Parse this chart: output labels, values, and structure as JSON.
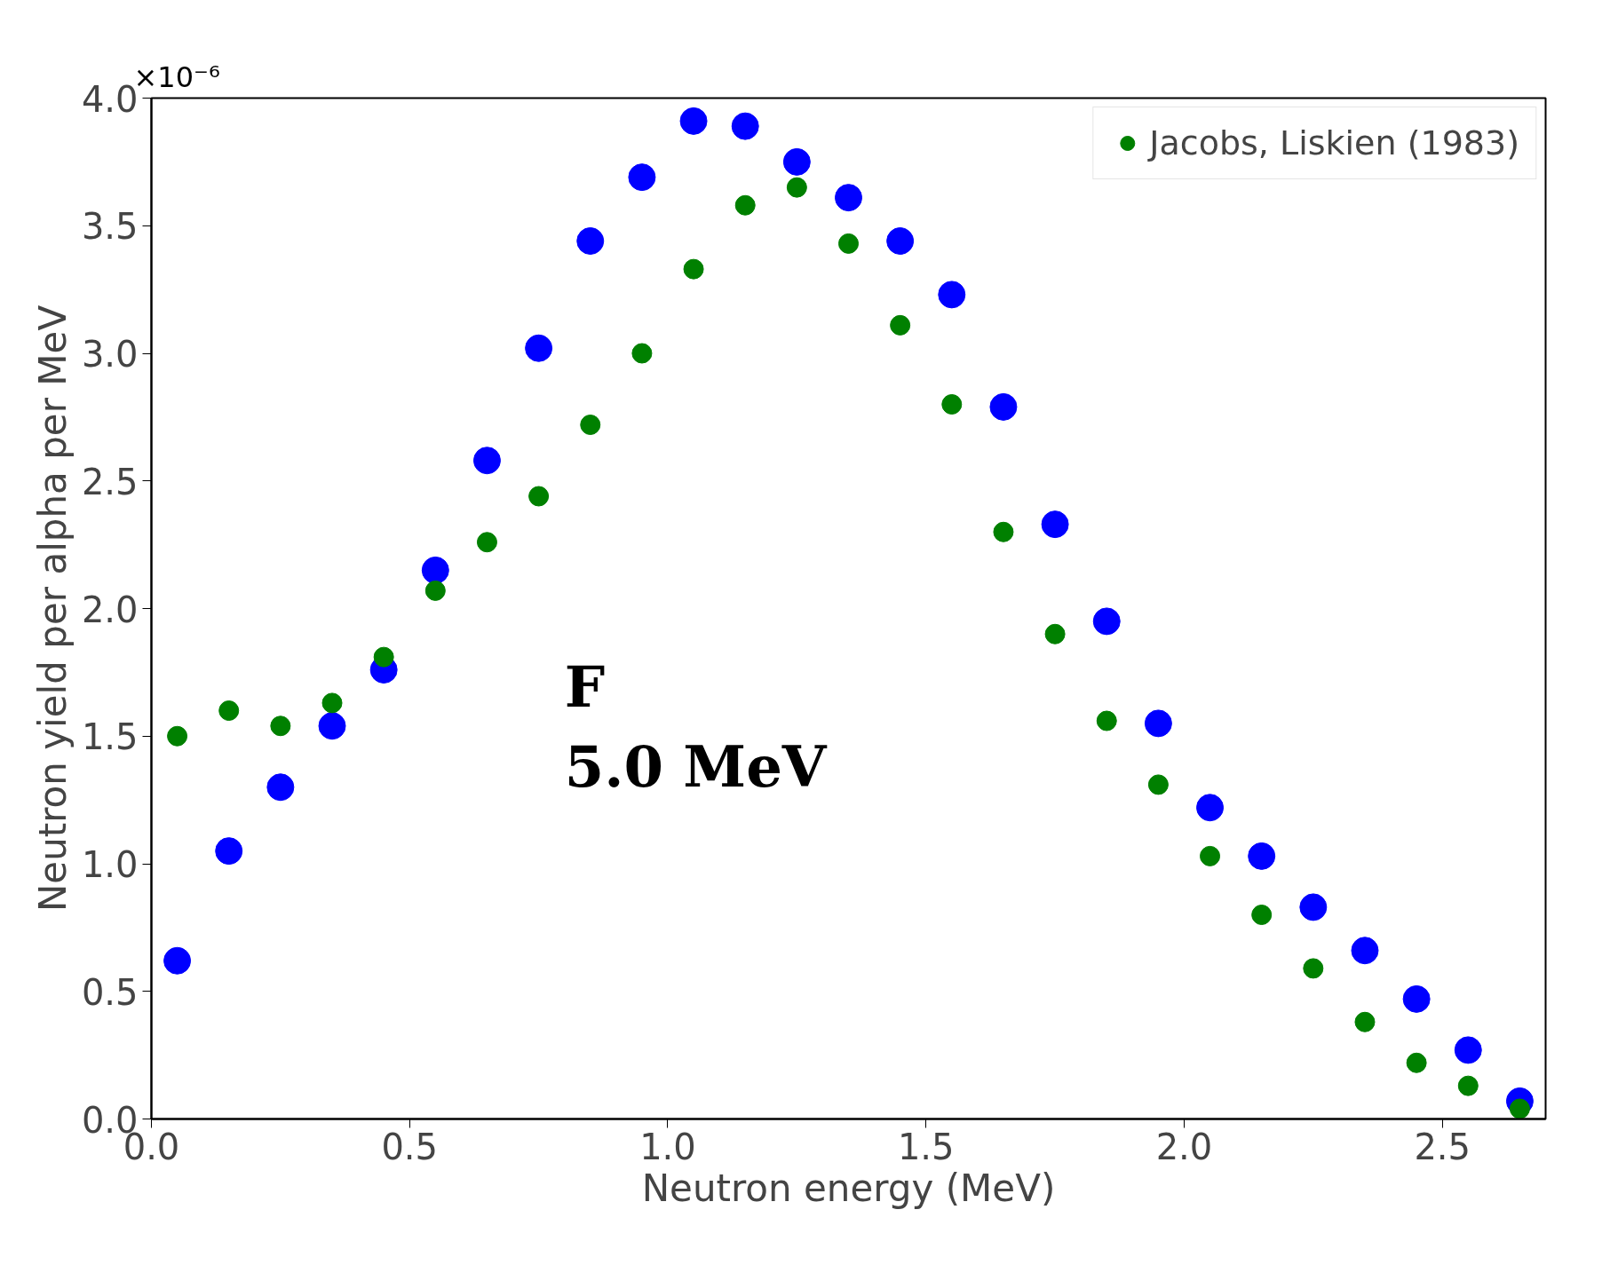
{
  "chart_data": {
    "type": "scatter",
    "xlabel": "Neutron energy (MeV)",
    "ylabel": "Neutron yield per alpha per MeV",
    "annotations": [
      "×10⁻⁶",
      "F\n5.0 MeV"
    ],
    "x": [
      0.05,
      0.15,
      0.25,
      0.35,
      0.45,
      0.55,
      0.65,
      0.75,
      0.85,
      0.95,
      1.05,
      1.15,
      1.25,
      1.35,
      1.45,
      1.55,
      1.65,
      1.75,
      1.85,
      1.95,
      2.05,
      2.15,
      2.25,
      2.35,
      2.45,
      2.55,
      2.65
    ],
    "series": [
      {
        "color": "#0000ff",
        "values": [
          0.62,
          1.05,
          1.3,
          1.54,
          1.76,
          2.15,
          2.58,
          3.02,
          3.44,
          3.69,
          3.91,
          3.89,
          3.75,
          3.61,
          3.44,
          3.23,
          2.79,
          2.33,
          1.95,
          1.55,
          1.22,
          1.03,
          0.83,
          0.66,
          0.47,
          0.27,
          0.07
        ]
      },
      {
        "name": "Jacobs, Liskien (1983)",
        "color": "#008000",
        "values": [
          1.5,
          1.6,
          1.54,
          1.63,
          1.81,
          2.07,
          2.26,
          2.44,
          2.72,
          3.0,
          3.33,
          3.58,
          3.65,
          3.43,
          3.11,
          2.8,
          2.3,
          1.9,
          1.56,
          1.31,
          1.03,
          0.8,
          0.59,
          0.38,
          0.22,
          0.13,
          0.04
        ]
      }
    ],
    "marker": "circle",
    "legend": "top right",
    "grid": false,
    "xlim": [
      0,
      2.7
    ],
    "xticks": [
      {
        "value": 0,
        "label": "0.0"
      },
      {
        "value": 0.5,
        "label": "0.5"
      },
      {
        "value": 1,
        "label": "1.0"
      },
      {
        "value": 1.5,
        "label": "1.5"
      },
      {
        "value": 2,
        "label": "2.0"
      },
      {
        "value": 2.5,
        "label": "2.5"
      }
    ],
    "ylim": [
      0,
      4.0
    ],
    "yticks": [
      {
        "value": 0,
        "label": "0.0"
      },
      {
        "value": 0.5,
        "label": "0.5"
      },
      {
        "value": 1,
        "label": "1.0"
      },
      {
        "value": 1.5,
        "label": "1.5"
      },
      {
        "value": 2,
        "label": "2.0"
      },
      {
        "value": 2.5,
        "label": "2.5"
      },
      {
        "value": 3,
        "label": "3.0"
      },
      {
        "value": 3.5,
        "label": "3.5"
      },
      {
        "value": 4,
        "label": "4.0"
      }
    ]
  }
}
